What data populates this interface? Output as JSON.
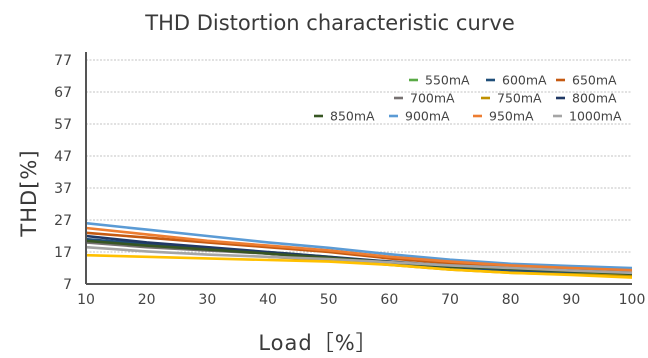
{
  "chart_data": {
    "type": "line",
    "title": "THD Distortion characteristic curve",
    "xlabel": "Load［%］",
    "ylabel": "THD[%]",
    "x": [
      10,
      20,
      30,
      40,
      50,
      60,
      70,
      80,
      90,
      100
    ],
    "xlim": [
      10,
      100
    ],
    "ylim": [
      7,
      77
    ],
    "yticks": [
      7,
      17,
      27,
      37,
      47,
      57,
      67,
      77
    ],
    "grid": true,
    "legend_position": "top-right",
    "series": [
      {
        "name": "550mA",
        "color": "#5aaa46",
        "x": [
          40,
          50,
          60,
          70,
          80,
          90,
          100
        ],
        "values": [
          17,
          15.5,
          13.5,
          12,
          11,
          10.5,
          10
        ]
      },
      {
        "name": "600mA",
        "color": "#1f4e79",
        "x": [
          10,
          20,
          30,
          40,
          50,
          60,
          70,
          80,
          90,
          100
        ],
        "values": [
          21,
          19.5,
          18,
          16.5,
          15,
          13.5,
          12,
          11.2,
          10.8,
          10.5
        ]
      },
      {
        "name": "650mA",
        "color": "#c55a11",
        "x": [
          10,
          20,
          30,
          40,
          50,
          60,
          70,
          80,
          90,
          100
        ],
        "values": [
          23,
          21.5,
          20,
          18.5,
          17,
          15,
          13.5,
          12.5,
          11.8,
          11
        ]
      },
      {
        "name": "700mA",
        "color": "#767171",
        "x": [
          10,
          20,
          30,
          40,
          50,
          60,
          70,
          80,
          90,
          100
        ],
        "values": [
          20,
          18.5,
          17.5,
          16.5,
          15.2,
          14,
          12.8,
          12,
          11.2,
          10.5
        ]
      },
      {
        "name": "750mA",
        "color": "#bf9000",
        "x": [
          40,
          50,
          60,
          70,
          80,
          90,
          100
        ],
        "values": [
          15.5,
          14.5,
          13,
          11.5,
          10.5,
          10,
          9.5
        ]
      },
      {
        "name": "800mA",
        "color": "#203864",
        "x": [
          10,
          20,
          30,
          40,
          50,
          60,
          70,
          80,
          90,
          100
        ],
        "values": [
          22,
          20,
          18.5,
          17,
          15.5,
          14,
          12.5,
          11.8,
          11.2,
          10.5
        ]
      },
      {
        "name": "850mA",
        "color": "#375623",
        "x": [
          10,
          20,
          30,
          40,
          50,
          60,
          70,
          80,
          90,
          100
        ],
        "values": [
          20.5,
          19,
          17.8,
          16.5,
          15.2,
          13.8,
          12.5,
          11.8,
          11,
          10.2
        ]
      },
      {
        "name": "900mA",
        "color": "#5b9bd5",
        "x": [
          10,
          20,
          30,
          40,
          50,
          60,
          70,
          80,
          90,
          100
        ],
        "values": [
          26,
          24,
          22,
          20,
          18.3,
          16.3,
          14.6,
          13.3,
          12.6,
          12
        ]
      },
      {
        "name": "950mA",
        "color": "#ed7d31",
        "x": [
          10,
          20,
          30,
          40,
          50,
          60,
          70,
          80,
          90,
          100
        ],
        "values": [
          24.5,
          22.5,
          20.5,
          19,
          17.5,
          15.5,
          14,
          12.8,
          12,
          11.3
        ]
      },
      {
        "name": "1000mA",
        "color": "#a5a5a5",
        "x": [
          10,
          20,
          30,
          40,
          50,
          60,
          70,
          80,
          90,
          100
        ],
        "values": [
          18.5,
          17.2,
          16.2,
          15.5,
          14.8,
          13.8,
          12.8,
          12,
          11.2,
          10.5
        ]
      },
      {
        "name": "",
        "color": "#ffc000",
        "x": [
          10,
          20,
          30,
          40,
          50,
          60,
          70,
          80,
          90,
          100
        ],
        "values": [
          16,
          15.5,
          15,
          14.5,
          14,
          13,
          11.5,
          10.5,
          9.8,
          9
        ]
      }
    ]
  }
}
